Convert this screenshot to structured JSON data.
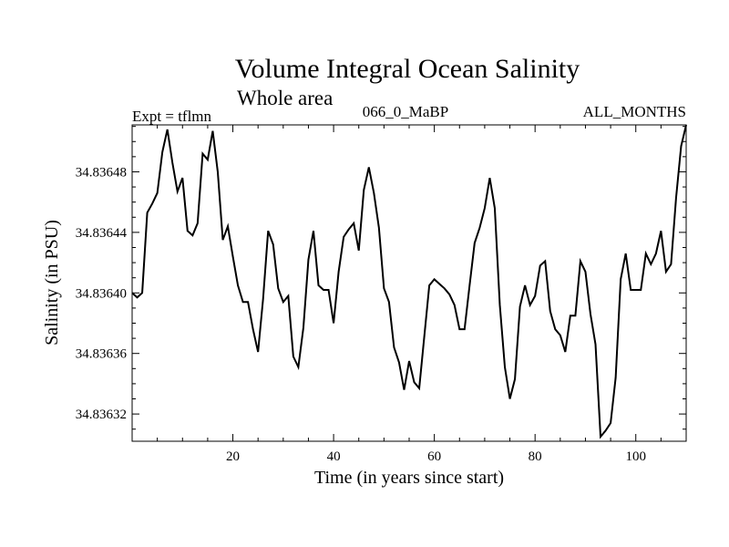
{
  "chart_data": {
    "type": "line",
    "title": "Volume Integral Ocean Salinity",
    "subtitle": "Whole area",
    "left_label": "Expt = tflmn",
    "center_label": "066_0_MaBP",
    "right_label": "ALL_MONTHS",
    "xlabel": "Time (in years since start)",
    "ylabel": "Salinity (in PSU)",
    "xlim": [
      0,
      110
    ],
    "ylim": [
      34.836302,
      34.836511
    ],
    "x_ticks": [
      20,
      40,
      60,
      80,
      100
    ],
    "x_tick_labels": [
      "20",
      "40",
      "60",
      "80",
      "100"
    ],
    "y_ticks": [
      34.83632,
      34.83636,
      34.8364,
      34.83644,
      34.83648
    ],
    "y_tick_labels": [
      "34.83632",
      "34.83636",
      "34.83640",
      "34.83644",
      "34.83648"
    ],
    "grid": false,
    "series": [
      {
        "name": "Salinity",
        "color": "#000000",
        "x": [
          0,
          1,
          2,
          3,
          4,
          5,
          6,
          7,
          8,
          9,
          10,
          11,
          12,
          13,
          14,
          15,
          16,
          17,
          18,
          19,
          20,
          21,
          22,
          23,
          24,
          25,
          26,
          27,
          28,
          29,
          30,
          31,
          32,
          33,
          34,
          35,
          36,
          37,
          38,
          39,
          40,
          41,
          42,
          43,
          44,
          45,
          46,
          47,
          48,
          49,
          50,
          51,
          52,
          53,
          54,
          55,
          56,
          57,
          58,
          59,
          60,
          61,
          62,
          63,
          64,
          65,
          66,
          67,
          68,
          69,
          70,
          71,
          72,
          73,
          74,
          75,
          76,
          77,
          78,
          79,
          80,
          81,
          82,
          83,
          84,
          85,
          86,
          87,
          88,
          89,
          90,
          91,
          92,
          93,
          94,
          95,
          96,
          97,
          98,
          99,
          100,
          101,
          102,
          103,
          104,
          105,
          106,
          107,
          108,
          109,
          110
        ],
        "values": [
          34.8364,
          34.836397,
          34.8364,
          34.836453,
          34.836459,
          34.836466,
          34.836493,
          34.836508,
          34.836486,
          34.836467,
          34.836476,
          34.836441,
          34.836438,
          34.836446,
          34.836492,
          34.836488,
          34.836507,
          34.83648,
          34.836435,
          34.836444,
          34.836424,
          34.836405,
          34.836394,
          34.836394,
          34.836376,
          34.836361,
          34.836396,
          34.836441,
          34.836432,
          34.836403,
          34.836394,
          34.836398,
          34.836358,
          34.836351,
          34.836377,
          34.836422,
          34.836441,
          34.836405,
          34.836402,
          34.836402,
          34.83638,
          34.836414,
          34.836437,
          34.836442,
          34.836446,
          34.836428,
          34.836468,
          34.836483,
          34.836466,
          34.836443,
          34.836403,
          34.836394,
          34.836364,
          34.836354,
          34.836336,
          34.836355,
          34.836341,
          34.836337,
          34.836371,
          34.836405,
          34.836409,
          34.836406,
          34.836403,
          34.836399,
          34.836392,
          34.836376,
          34.836376,
          34.836405,
          34.836433,
          34.836443,
          34.836456,
          34.836476,
          34.836456,
          34.836392,
          34.836351,
          34.83633,
          34.836343,
          34.836391,
          34.836405,
          34.836392,
          34.836398,
          34.836418,
          34.836421,
          34.836388,
          34.836376,
          34.836372,
          34.836361,
          34.836385,
          34.836385,
          34.836421,
          34.836414,
          34.836386,
          34.836366,
          34.836305,
          34.836309,
          34.836314,
          34.836344,
          34.836409,
          34.836426,
          34.836402,
          34.836402,
          34.836402,
          34.836426,
          34.836419,
          34.836426,
          34.836441,
          34.836414,
          34.836419,
          34.836463,
          34.836497,
          34.836511
        ]
      }
    ]
  }
}
